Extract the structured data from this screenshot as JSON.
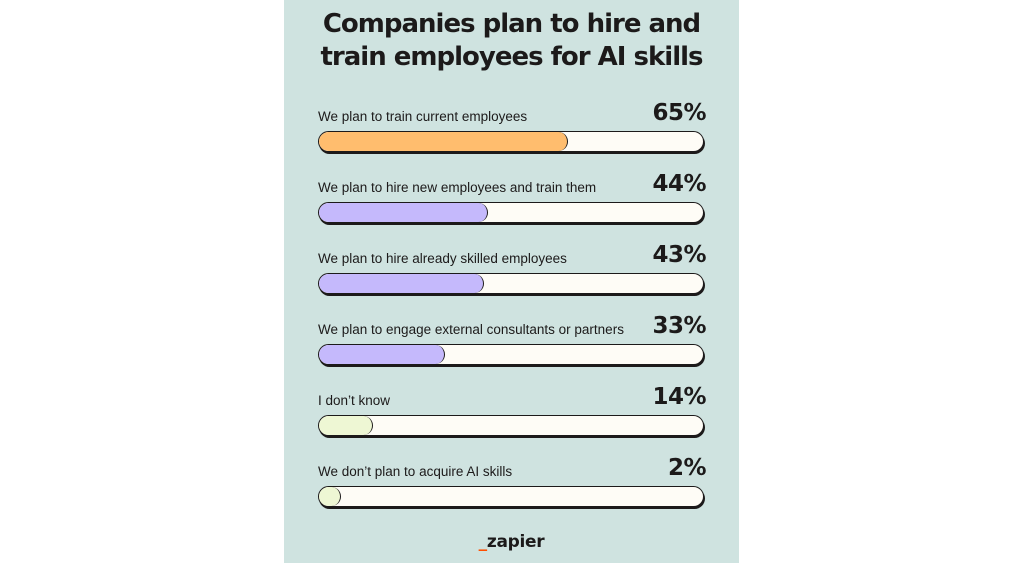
{
  "title_lines": [
    "Companies plan to hire and",
    "train employees for AI skills"
  ],
  "logo": {
    "dash": "_",
    "text": "zapier"
  },
  "colors": {
    "background": "#cfe3e0",
    "track": "#fefcf6",
    "outline": "#1c1a1a",
    "orange": "#ffbd6e",
    "purple": "#c5b9fc",
    "pale": "#eef7d4",
    "logo_dash": "#ff4f00"
  },
  "chart_data": {
    "type": "bar",
    "orientation": "horizontal",
    "title": "Companies plan to hire and train employees for AI skills",
    "categories": [
      "We plan to train current employees",
      "We plan to hire new employees and train them",
      "We plan to hire already skilled employees",
      "We plan to engage external consultants or partners",
      "I don’t know",
      "We don’t plan to acquire AI skills"
    ],
    "values": [
      65,
      44,
      43,
      33,
      14,
      2
    ],
    "value_labels": [
      "65%",
      "44%",
      "43%",
      "33%",
      "14%",
      "2%"
    ],
    "bar_colors": [
      "#ffbd6e",
      "#c5b9fc",
      "#c5b9fc",
      "#c5b9fc",
      "#eef7d4",
      "#eef7d4"
    ],
    "xlim": [
      0,
      100
    ],
    "grid": false,
    "legend": "none"
  }
}
